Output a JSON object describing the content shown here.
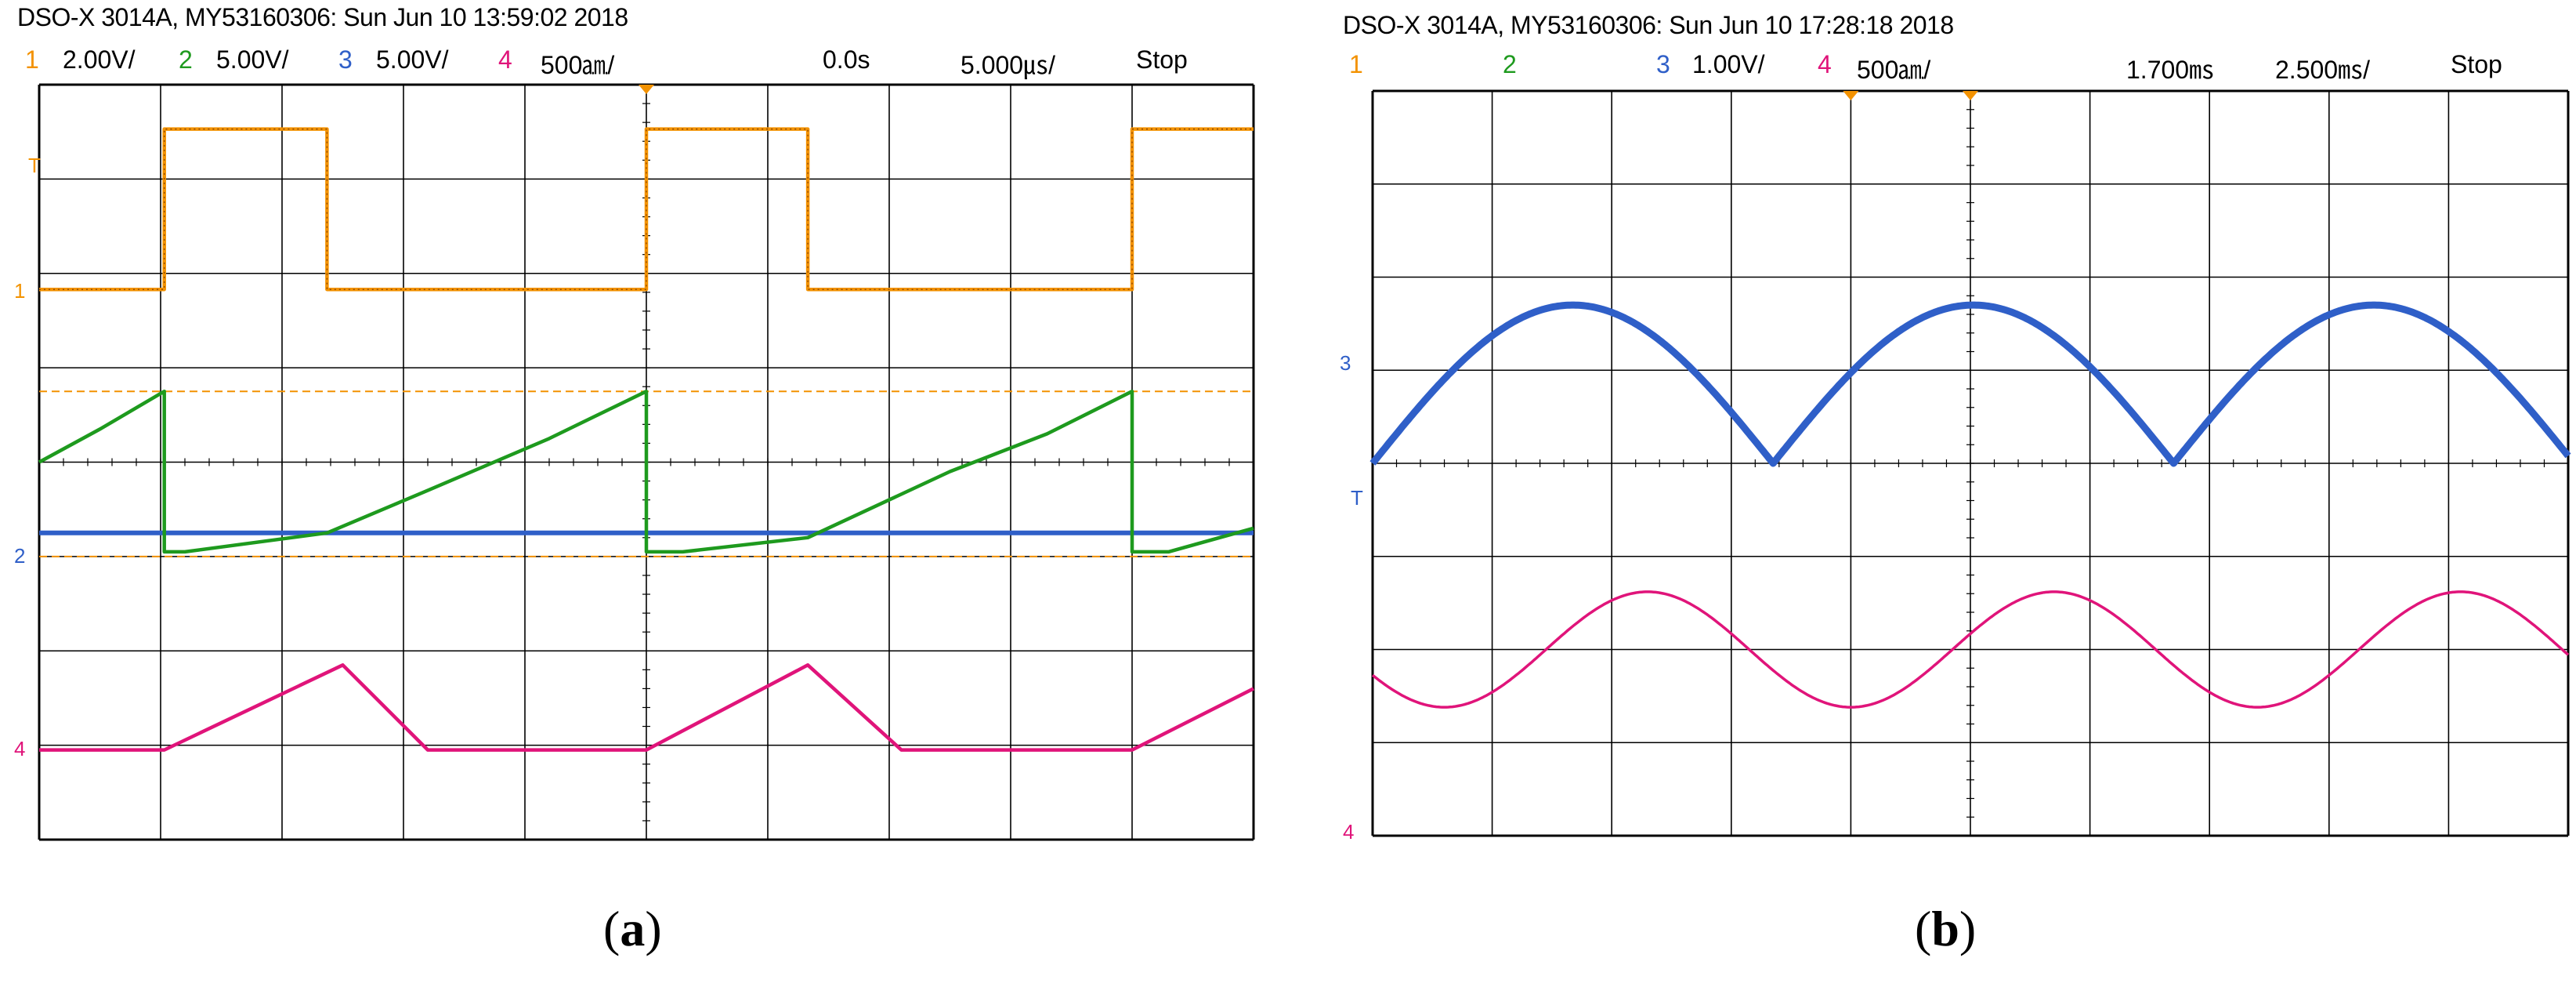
{
  "colors": {
    "ch1": "#f39200",
    "ch2": "#1e9a1e",
    "ch3": "#2f5fc8",
    "ch4": "#e0147a",
    "grid": "#000000",
    "ch1_dark": "#7a3a00"
  },
  "panels": [
    {
      "caption_label": "a",
      "header": {
        "model": "DSO-X 3014A, MY53160306: Sun Jun 10 13:59:02 2018",
        "channels": [
          {
            "num": "1",
            "scale": "2.00V/"
          },
          {
            "num": "2",
            "scale": "5.00V/"
          },
          {
            "num": "3",
            "scale": "5.00V/"
          },
          {
            "num": "4",
            "scale": "500㏂/"
          }
        ],
        "time_offset": "0.0s",
        "time_scale": "5.000㎲/",
        "status": "Stop"
      },
      "markers": {
        "trig": "T",
        "ch1": "1",
        "ch2": "2",
        "ch4": "4"
      }
    },
    {
      "caption_label": "b",
      "header": {
        "model": "DSO-X 3014A, MY53160306: Sun Jun 10 17:28:18 2018",
        "channels": [
          {
            "num": "1",
            "scale": ""
          },
          {
            "num": "2",
            "scale": ""
          },
          {
            "num": "3",
            "scale": "1.00V/"
          },
          {
            "num": "4",
            "scale": "500㏂/"
          }
        ],
        "time_offset": "1.700㎳",
        "time_scale": "2.500㎳/",
        "status": "Stop"
      },
      "markers": {
        "trig": "T",
        "ch3": "3",
        "ch4": "4"
      }
    }
  ],
  "chart_data": [
    {
      "type": "line",
      "title": "",
      "grid": true,
      "divisions": {
        "x": 10,
        "y": 8
      },
      "xlim": [
        0,
        10
      ],
      "ylim": [
        0,
        8
      ],
      "series": [
        {
          "name": "1",
          "x": [
            0,
            1.03,
            1.03,
            2.37,
            2.37,
            5.0,
            5.0,
            6.33,
            6.33,
            9.0,
            9.0,
            10.0
          ],
          "y": [
            5.83,
            5.83,
            7.53,
            7.53,
            5.83,
            5.83,
            7.53,
            7.53,
            5.83,
            5.83,
            7.53,
            7.53
          ]
        },
        {
          "name": "2",
          "x": [
            0,
            0.5,
            1.03,
            1.03,
            1.2,
            2.37,
            3.2,
            4.2,
            5.0,
            5.0,
            5.3,
            6.33,
            7.5,
            8.3,
            9.0,
            9.0,
            9.3,
            10.0
          ],
          "y": [
            4.0,
            4.35,
            4.75,
            3.05,
            3.05,
            3.25,
            3.7,
            4.25,
            4.75,
            3.05,
            3.05,
            3.2,
            3.9,
            4.3,
            4.75,
            3.05,
            3.05,
            3.3
          ]
        },
        {
          "name": "3",
          "x": [
            0,
            10
          ],
          "y": [
            3.25,
            3.25
          ]
        },
        {
          "name": "4",
          "x": [
            0,
            1.03,
            2.5,
            3.2,
            5.0,
            6.33,
            7.1,
            9.0,
            10.0
          ],
          "y": [
            0.95,
            0.95,
            1.85,
            0.95,
            0.95,
            1.85,
            0.95,
            0.95,
            1.6
          ]
        }
      ]
    },
    {
      "type": "line",
      "title": "",
      "grid": true,
      "divisions": {
        "x": 10,
        "y": 8
      },
      "xlim": [
        0,
        10
      ],
      "ylim": [
        0,
        8
      ],
      "series": [
        {
          "name": "3",
          "waveform": "rectified-sine",
          "period_div": 3.35,
          "phase_div": 0.0,
          "offset_div": 4.0,
          "amplitude_div": 1.7
        },
        {
          "name": "4",
          "waveform": "sine",
          "period_div": 3.4,
          "phase_div": 1.45,
          "offset_div": 2.0,
          "amplitude_div": 0.62
        }
      ]
    }
  ]
}
